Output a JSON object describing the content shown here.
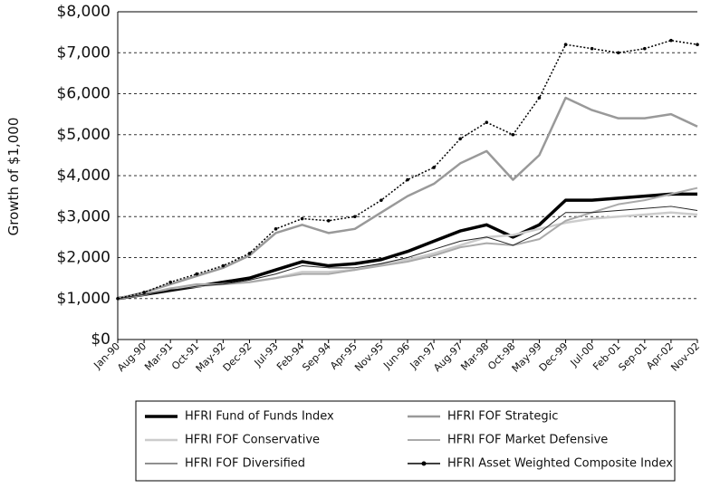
{
  "chart_data": {
    "type": "line",
    "y_label": "Growth of $1,000",
    "categories": [
      "Jan-90",
      "Aug-90",
      "Mar-91",
      "Oct-91",
      "May-92",
      "Dec-92",
      "Jul-93",
      "Feb-94",
      "Sep-94",
      "Apr-95",
      "Nov-95",
      "Jun-96",
      "Jan-97",
      "Aug-97",
      "Mar-98",
      "Oct-98",
      "May-99",
      "Dec-99",
      "Jul-00",
      "Feb-01",
      "Sep-01",
      "Apr-02",
      "Nov-02"
    ],
    "series": [
      {
        "name": "HFRI Fund of Funds Index",
        "color": "#000000",
        "line_width": 3.5,
        "values": [
          1000,
          1100,
          1200,
          1300,
          1400,
          1500,
          1700,
          1900,
          1800,
          1850,
          1950,
          2150,
          2400,
          2650,
          2800,
          2500,
          2800,
          3400,
          3400,
          3450,
          3500,
          3550,
          3550
        ]
      },
      {
        "name": "HFRI FOF Strategic",
        "color": "#999999",
        "line_width": 2.5,
        "values": [
          1000,
          1150,
          1350,
          1550,
          1750,
          2050,
          2600,
          2800,
          2600,
          2700,
          3100,
          3500,
          3800,
          4300,
          4600,
          3900,
          4500,
          5900,
          5600,
          5400,
          5400,
          5500,
          5200
        ]
      },
      {
        "name": "HFRI FOF Conservative",
        "color": "#cccccc",
        "line_width": 2.5,
        "values": [
          1000,
          1100,
          1250,
          1300,
          1350,
          1400,
          1500,
          1650,
          1650,
          1700,
          1850,
          1950,
          2100,
          2300,
          2500,
          2550,
          2700,
          2850,
          2950,
          3000,
          3050,
          3100,
          3050
        ]
      },
      {
        "name": "HFRI FOF Market Defensive",
        "color": "#aaaaaa",
        "line_width": 2,
        "values": [
          1000,
          1100,
          1250,
          1350,
          1350,
          1400,
          1500,
          1600,
          1600,
          1700,
          1800,
          1900,
          2050,
          2250,
          2350,
          2300,
          2450,
          2900,
          3100,
          3300,
          3400,
          3550,
          3700
        ]
      },
      {
        "name": "HFRI FOF Diversified",
        "color": "#222222",
        "line_width": 1,
        "values": [
          1000,
          1100,
          1200,
          1300,
          1350,
          1450,
          1600,
          1800,
          1750,
          1750,
          1850,
          2000,
          2200,
          2400,
          2500,
          2300,
          2600,
          3100,
          3100,
          3150,
          3200,
          3250,
          3150
        ]
      },
      {
        "name": "HFRI Asset Weighted Composite Index",
        "color": "#000000",
        "line_width": 1.5,
        "dash": "dotted",
        "marker": "circle",
        "values": [
          1000,
          1150,
          1400,
          1600,
          1800,
          2100,
          2700,
          2950,
          2900,
          3000,
          3400,
          3900,
          4200,
          4900,
          5300,
          5000,
          5900,
          7200,
          7100,
          7000,
          7100,
          7300,
          7200
        ]
      }
    ],
    "ylim": [
      0,
      8000
    ],
    "yticks": [
      {
        "value": 0,
        "label": "$0"
      },
      {
        "value": 1000,
        "label": "$1,000"
      },
      {
        "value": 2000,
        "label": "$2,000"
      },
      {
        "value": 3000,
        "label": "$3,000"
      },
      {
        "value": 4000,
        "label": "$4,000"
      },
      {
        "value": 5000,
        "label": "$5,000"
      },
      {
        "value": 6000,
        "label": "$6,000"
      },
      {
        "value": 7000,
        "label": "$7,000"
      },
      {
        "value": 8000,
        "label": "$8,000"
      }
    ],
    "grid": true,
    "legend": "bottom"
  }
}
